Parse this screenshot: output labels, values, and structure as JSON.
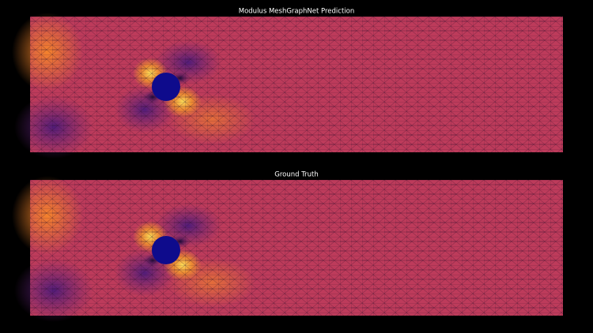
{
  "panels": [
    {
      "title": "Modulus MeshGraphNet Prediction"
    },
    {
      "title": "Ground Truth"
    }
  ]
}
